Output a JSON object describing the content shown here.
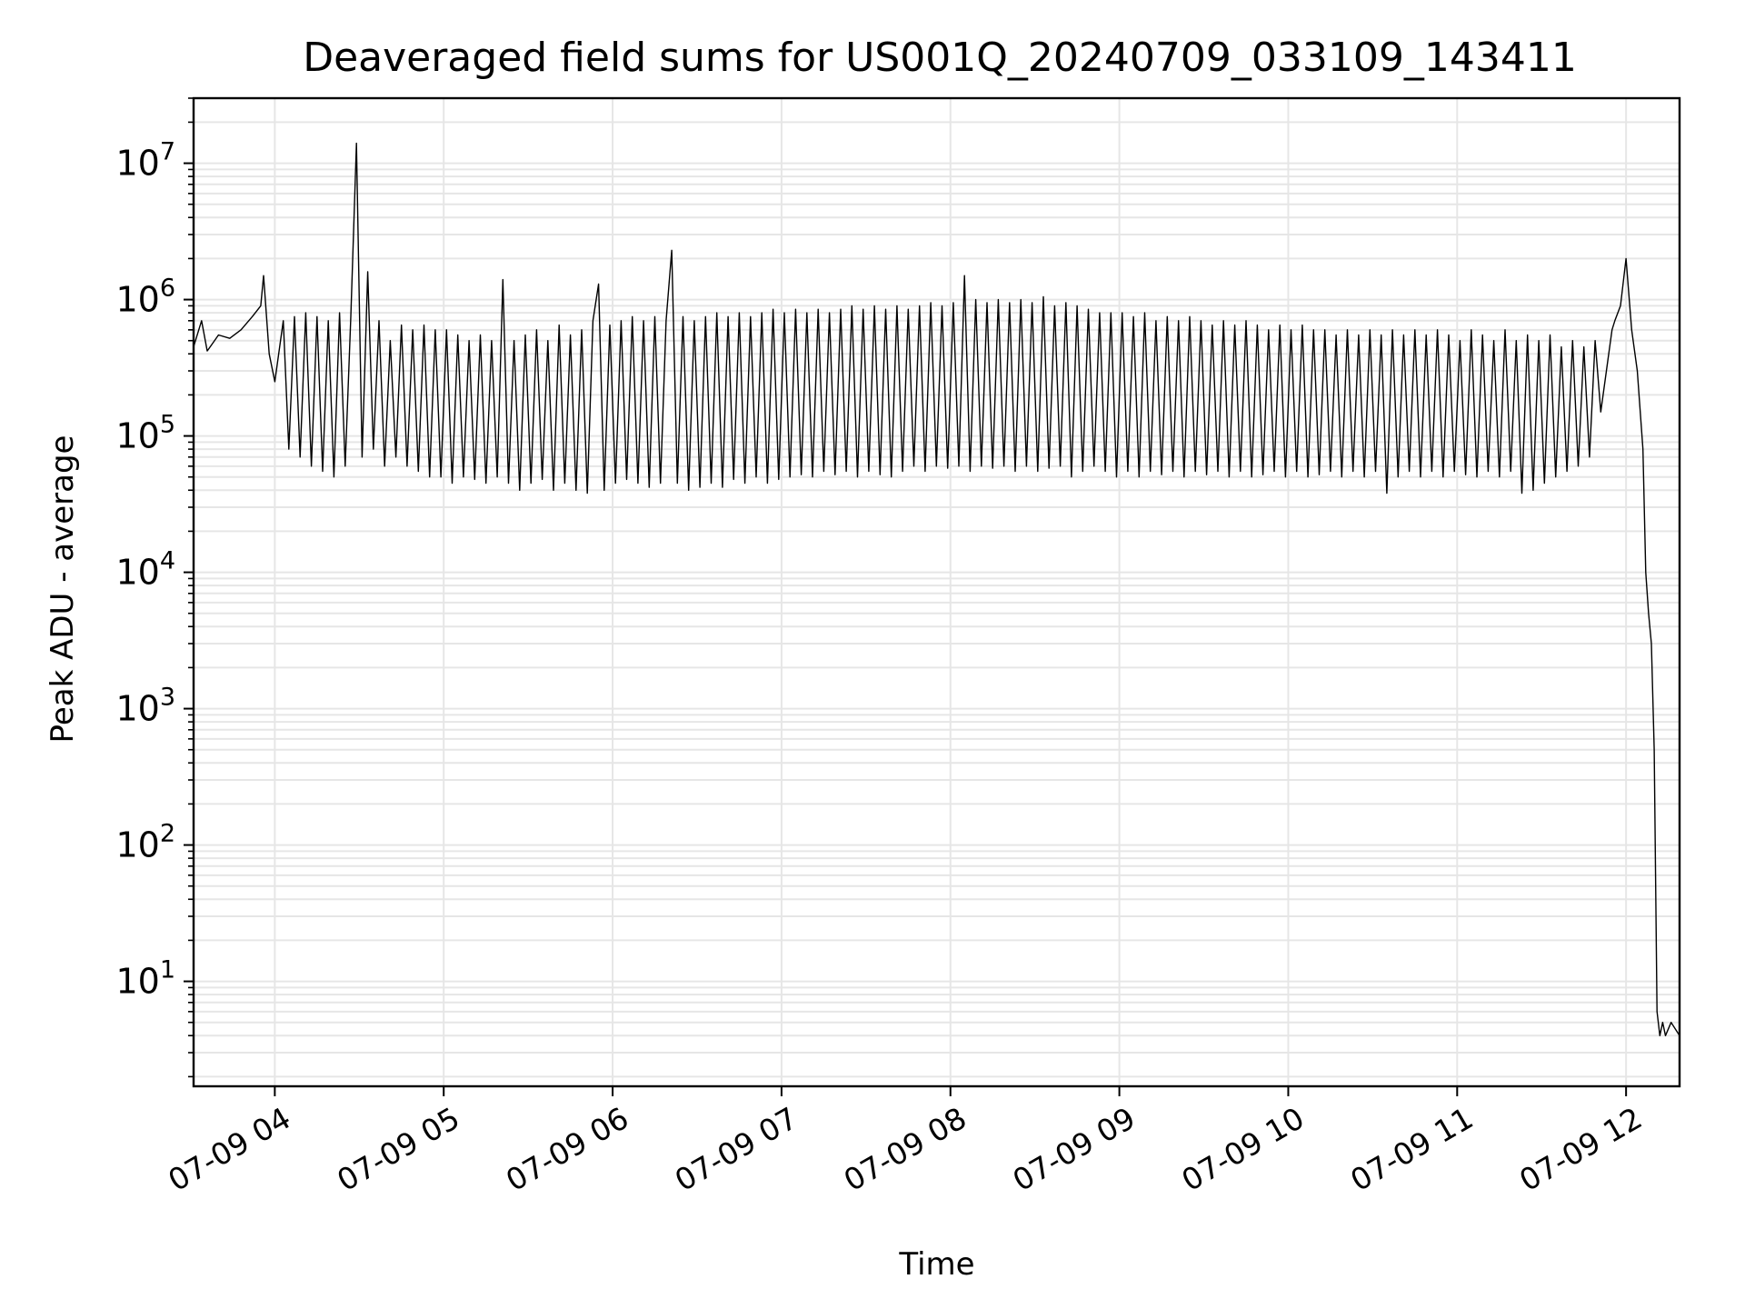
{
  "chart_data": {
    "type": "line",
    "title": "Deaveraged field sums for US001Q_20240709_033109_143411",
    "xlabel": "Time",
    "ylabel": "Peak ADU - average",
    "xscale": "date",
    "yscale": "log",
    "xlim": [
      "2024-07-09T03:31:09",
      "2024-07-09T12:19:00"
    ],
    "ylim": [
      1.7,
      30000000
    ],
    "grid": true,
    "legend": "none",
    "line_color": "#000000",
    "grid_color": "#e6e6e6",
    "x_ticks": [
      {
        "value": "2024-07-09T04:00:00",
        "label": "07-09 04"
      },
      {
        "value": "2024-07-09T05:00:00",
        "label": "07-09 05"
      },
      {
        "value": "2024-07-09T06:00:00",
        "label": "07-09 06"
      },
      {
        "value": "2024-07-09T07:00:00",
        "label": "07-09 07"
      },
      {
        "value": "2024-07-09T08:00:00",
        "label": "07-09 08"
      },
      {
        "value": "2024-07-09T09:00:00",
        "label": "07-09 09"
      },
      {
        "value": "2024-07-09T10:00:00",
        "label": "07-09 10"
      },
      {
        "value": "2024-07-09T11:00:00",
        "label": "07-09 11"
      },
      {
        "value": "2024-07-09T12:00:00",
        "label": "07-09 12"
      }
    ],
    "y_ticks": [
      {
        "value": 10,
        "base": "10",
        "exp": "1"
      },
      {
        "value": 100,
        "base": "10",
        "exp": "2"
      },
      {
        "value": 1000,
        "base": "10",
        "exp": "3"
      },
      {
        "value": 10000,
        "base": "10",
        "exp": "4"
      },
      {
        "value": 100000,
        "base": "10",
        "exp": "5"
      },
      {
        "value": 1000000,
        "base": "10",
        "exp": "6"
      },
      {
        "value": 10000000,
        "base": "10",
        "exp": "7"
      }
    ],
    "series": [
      {
        "x": [
          "2024-07-09T03:31:09",
          "2024-07-09T03:34:00",
          "2024-07-09T03:36:00",
          "2024-07-09T03:38:00",
          "2024-07-09T03:40:00",
          "2024-07-09T03:44:00",
          "2024-07-09T03:48:00",
          "2024-07-09T03:52:00",
          "2024-07-09T03:55:00",
          "2024-07-09T03:56:00",
          "2024-07-09T03:58:00",
          "2024-07-09T04:00:00",
          "2024-07-09T04:03:00",
          "2024-07-09T04:05:00",
          "2024-07-09T04:07:00",
          "2024-07-09T04:09:00",
          "2024-07-09T04:11:00",
          "2024-07-09T04:13:00",
          "2024-07-09T04:15:00",
          "2024-07-09T04:17:00",
          "2024-07-09T04:19:00",
          "2024-07-09T04:21:00",
          "2024-07-09T04:23:00",
          "2024-07-09T04:25:00",
          "2024-07-09T04:27:00",
          "2024-07-09T04:29:00",
          "2024-07-09T04:31:00",
          "2024-07-09T04:33:00",
          "2024-07-09T04:35:00",
          "2024-07-09T04:37:00",
          "2024-07-09T04:39:00",
          "2024-07-09T04:41:00",
          "2024-07-09T04:43:00",
          "2024-07-09T04:45:00",
          "2024-07-09T04:47:00",
          "2024-07-09T04:49:00",
          "2024-07-09T04:51:00",
          "2024-07-09T04:53:00",
          "2024-07-09T04:55:00",
          "2024-07-09T04:57:00",
          "2024-07-09T04:59:00",
          "2024-07-09T05:01:00",
          "2024-07-09T05:03:00",
          "2024-07-09T05:05:00",
          "2024-07-09T05:07:00",
          "2024-07-09T05:09:00",
          "2024-07-09T05:11:00",
          "2024-07-09T05:13:00",
          "2024-07-09T05:15:00",
          "2024-07-09T05:17:00",
          "2024-07-09T05:19:00",
          "2024-07-09T05:21:00",
          "2024-07-09T05:23:00",
          "2024-07-09T05:25:00",
          "2024-07-09T05:27:00",
          "2024-07-09T05:29:00",
          "2024-07-09T05:31:00",
          "2024-07-09T05:33:00",
          "2024-07-09T05:35:00",
          "2024-07-09T05:37:00",
          "2024-07-09T05:39:00",
          "2024-07-09T05:41:00",
          "2024-07-09T05:43:00",
          "2024-07-09T05:45:00",
          "2024-07-09T05:47:00",
          "2024-07-09T05:49:00",
          "2024-07-09T05:51:00",
          "2024-07-09T05:53:00",
          "2024-07-09T05:55:00",
          "2024-07-09T05:57:00",
          "2024-07-09T05:59:00",
          "2024-07-09T06:01:00",
          "2024-07-09T06:03:00",
          "2024-07-09T06:05:00",
          "2024-07-09T06:07:00",
          "2024-07-09T06:09:00",
          "2024-07-09T06:11:00",
          "2024-07-09T06:13:00",
          "2024-07-09T06:15:00",
          "2024-07-09T06:17:00",
          "2024-07-09T06:19:00",
          "2024-07-09T06:21:00",
          "2024-07-09T06:23:00",
          "2024-07-09T06:25:00",
          "2024-07-09T06:27:00",
          "2024-07-09T06:29:00",
          "2024-07-09T06:31:00",
          "2024-07-09T06:33:00",
          "2024-07-09T06:35:00",
          "2024-07-09T06:37:00",
          "2024-07-09T06:39:00",
          "2024-07-09T06:41:00",
          "2024-07-09T06:43:00",
          "2024-07-09T06:45:00",
          "2024-07-09T06:47:00",
          "2024-07-09T06:49:00",
          "2024-07-09T06:51:00",
          "2024-07-09T06:53:00",
          "2024-07-09T06:55:00",
          "2024-07-09T06:57:00",
          "2024-07-09T06:59:00",
          "2024-07-09T07:01:00",
          "2024-07-09T07:03:00",
          "2024-07-09T07:05:00",
          "2024-07-09T07:07:00",
          "2024-07-09T07:09:00",
          "2024-07-09T07:11:00",
          "2024-07-09T07:13:00",
          "2024-07-09T07:15:00",
          "2024-07-09T07:17:00",
          "2024-07-09T07:19:00",
          "2024-07-09T07:21:00",
          "2024-07-09T07:23:00",
          "2024-07-09T07:25:00",
          "2024-07-09T07:27:00",
          "2024-07-09T07:29:00",
          "2024-07-09T07:31:00",
          "2024-07-09T07:33:00",
          "2024-07-09T07:35:00",
          "2024-07-09T07:37:00",
          "2024-07-09T07:39:00",
          "2024-07-09T07:41:00",
          "2024-07-09T07:43:00",
          "2024-07-09T07:45:00",
          "2024-07-09T07:47:00",
          "2024-07-09T07:49:00",
          "2024-07-09T07:51:00",
          "2024-07-09T07:53:00",
          "2024-07-09T07:55:00",
          "2024-07-09T07:57:00",
          "2024-07-09T07:59:00",
          "2024-07-09T08:01:00",
          "2024-07-09T08:03:00",
          "2024-07-09T08:05:00",
          "2024-07-09T08:07:00",
          "2024-07-09T08:09:00",
          "2024-07-09T08:11:00",
          "2024-07-09T08:13:00",
          "2024-07-09T08:15:00",
          "2024-07-09T08:17:00",
          "2024-07-09T08:19:00",
          "2024-07-09T08:21:00",
          "2024-07-09T08:23:00",
          "2024-07-09T08:25:00",
          "2024-07-09T08:27:00",
          "2024-07-09T08:29:00",
          "2024-07-09T08:31:00",
          "2024-07-09T08:33:00",
          "2024-07-09T08:35:00",
          "2024-07-09T08:37:00",
          "2024-07-09T08:39:00",
          "2024-07-09T08:41:00",
          "2024-07-09T08:43:00",
          "2024-07-09T08:45:00",
          "2024-07-09T08:47:00",
          "2024-07-09T08:49:00",
          "2024-07-09T08:51:00",
          "2024-07-09T08:53:00",
          "2024-07-09T08:55:00",
          "2024-07-09T08:57:00",
          "2024-07-09T08:59:00",
          "2024-07-09T09:01:00",
          "2024-07-09T09:03:00",
          "2024-07-09T09:05:00",
          "2024-07-09T09:07:00",
          "2024-07-09T09:09:00",
          "2024-07-09T09:11:00",
          "2024-07-09T09:13:00",
          "2024-07-09T09:15:00",
          "2024-07-09T09:17:00",
          "2024-07-09T09:19:00",
          "2024-07-09T09:21:00",
          "2024-07-09T09:23:00",
          "2024-07-09T09:25:00",
          "2024-07-09T09:27:00",
          "2024-07-09T09:29:00",
          "2024-07-09T09:31:00",
          "2024-07-09T09:33:00",
          "2024-07-09T09:35:00",
          "2024-07-09T09:37:00",
          "2024-07-09T09:39:00",
          "2024-07-09T09:41:00",
          "2024-07-09T09:43:00",
          "2024-07-09T09:45:00",
          "2024-07-09T09:47:00",
          "2024-07-09T09:49:00",
          "2024-07-09T09:51:00",
          "2024-07-09T09:53:00",
          "2024-07-09T09:55:00",
          "2024-07-09T09:57:00",
          "2024-07-09T09:59:00",
          "2024-07-09T10:01:00",
          "2024-07-09T10:03:00",
          "2024-07-09T10:05:00",
          "2024-07-09T10:07:00",
          "2024-07-09T10:09:00",
          "2024-07-09T10:11:00",
          "2024-07-09T10:13:00",
          "2024-07-09T10:15:00",
          "2024-07-09T10:17:00",
          "2024-07-09T10:19:00",
          "2024-07-09T10:21:00",
          "2024-07-09T10:23:00",
          "2024-07-09T10:25:00",
          "2024-07-09T10:27:00",
          "2024-07-09T10:29:00",
          "2024-07-09T10:31:00",
          "2024-07-09T10:33:00",
          "2024-07-09T10:35:00",
          "2024-07-09T10:37:00",
          "2024-07-09T10:39:00",
          "2024-07-09T10:41:00",
          "2024-07-09T10:43:00",
          "2024-07-09T10:45:00",
          "2024-07-09T10:47:00",
          "2024-07-09T10:49:00",
          "2024-07-09T10:51:00",
          "2024-07-09T10:53:00",
          "2024-07-09T10:55:00",
          "2024-07-09T10:57:00",
          "2024-07-09T10:59:00",
          "2024-07-09T11:01:00",
          "2024-07-09T11:03:00",
          "2024-07-09T11:05:00",
          "2024-07-09T11:07:00",
          "2024-07-09T11:09:00",
          "2024-07-09T11:11:00",
          "2024-07-09T11:13:00",
          "2024-07-09T11:15:00",
          "2024-07-09T11:17:00",
          "2024-07-09T11:19:00",
          "2024-07-09T11:21:00",
          "2024-07-09T11:23:00",
          "2024-07-09T11:25:00",
          "2024-07-09T11:27:00",
          "2024-07-09T11:29:00",
          "2024-07-09T11:31:00",
          "2024-07-09T11:33:00",
          "2024-07-09T11:35:00",
          "2024-07-09T11:37:00",
          "2024-07-09T11:39:00",
          "2024-07-09T11:41:00",
          "2024-07-09T11:43:00",
          "2024-07-09T11:45:00",
          "2024-07-09T11:47:00",
          "2024-07-09T11:49:00",
          "2024-07-09T11:51:00",
          "2024-07-09T11:53:00",
          "2024-07-09T11:55:00",
          "2024-07-09T11:56:00",
          "2024-07-09T11:58:00",
          "2024-07-09T12:00:00",
          "2024-07-09T12:02:00",
          "2024-07-09T12:04:00",
          "2024-07-09T12:06:00",
          "2024-07-09T12:07:00",
          "2024-07-09T12:08:00",
          "2024-07-09T12:09:00",
          "2024-07-09T12:10:00",
          "2024-07-09T12:11:00",
          "2024-07-09T12:12:00",
          "2024-07-09T12:13:00",
          "2024-07-09T12:14:00",
          "2024-07-09T12:16:00",
          "2024-07-09T12:19:00"
        ],
        "y": [
          450000,
          700000,
          420000,
          480000,
          550000,
          520000,
          600000,
          750000,
          900000,
          1500000,
          400000,
          250000,
          700000,
          80000,
          750000,
          70000,
          800000,
          60000,
          750000,
          55000,
          700000,
          50000,
          800000,
          60000,
          750000,
          14000000,
          70000,
          1600000,
          80000,
          700000,
          60000,
          500000,
          70000,
          650000,
          60000,
          600000,
          55000,
          650000,
          50000,
          600000,
          50000,
          600000,
          45000,
          550000,
          50000,
          500000,
          48000,
          550000,
          45000,
          500000,
          50000,
          1400000,
          45000,
          500000,
          40000,
          550000,
          45000,
          600000,
          48000,
          500000,
          40000,
          650000,
          45000,
          550000,
          40000,
          600000,
          38000,
          700000,
          1300000,
          40000,
          650000,
          45000,
          700000,
          48000,
          750000,
          45000,
          700000,
          42000,
          750000,
          45000,
          700000,
          2300000,
          45000,
          750000,
          40000,
          700000,
          42000,
          750000,
          45000,
          800000,
          42000,
          750000,
          48000,
          800000,
          45000,
          750000,
          50000,
          800000,
          45000,
          850000,
          48000,
          800000,
          50000,
          850000,
          52000,
          800000,
          50000,
          850000,
          55000,
          800000,
          52000,
          850000,
          55000,
          900000,
          50000,
          850000,
          55000,
          900000,
          52000,
          850000,
          50000,
          900000,
          55000,
          850000,
          60000,
          900000,
          55000,
          950000,
          60000,
          900000,
          58000,
          950000,
          60000,
          1500000,
          55000,
          1000000,
          60000,
          950000,
          58000,
          1000000,
          60000,
          950000,
          55000,
          1000000,
          60000,
          950000,
          55000,
          1050000,
          58000,
          900000,
          60000,
          950000,
          50000,
          900000,
          55000,
          850000,
          60000,
          800000,
          55000,
          800000,
          50000,
          800000,
          55000,
          750000,
          50000,
          800000,
          55000,
          700000,
          52000,
          750000,
          55000,
          700000,
          50000,
          750000,
          55000,
          700000,
          52000,
          650000,
          55000,
          700000,
          50000,
          650000,
          55000,
          700000,
          50000,
          650000,
          52000,
          600000,
          55000,
          650000,
          50000,
          600000,
          55000,
          650000,
          50000,
          600000,
          52000,
          600000,
          55000,
          550000,
          50000,
          600000,
          55000,
          550000,
          50000,
          600000,
          55000,
          550000,
          38000,
          600000,
          50000,
          550000,
          55000,
          600000,
          50000,
          550000,
          55000,
          600000,
          50000,
          550000,
          55000,
          500000,
          52000,
          600000,
          50000,
          550000,
          55000,
          500000,
          50000,
          600000,
          55000,
          500000,
          38000,
          550000,
          40000,
          500000,
          45000,
          550000,
          50000,
          450000,
          55000,
          500000,
          60000,
          450000,
          70000,
          500000,
          150000,
          300000,
          600000,
          700000,
          900000,
          2000000,
          600000,
          300000,
          80000,
          10000,
          5000,
          3000,
          500,
          6,
          4,
          5,
          4,
          5,
          4
        ]
      }
    ]
  }
}
